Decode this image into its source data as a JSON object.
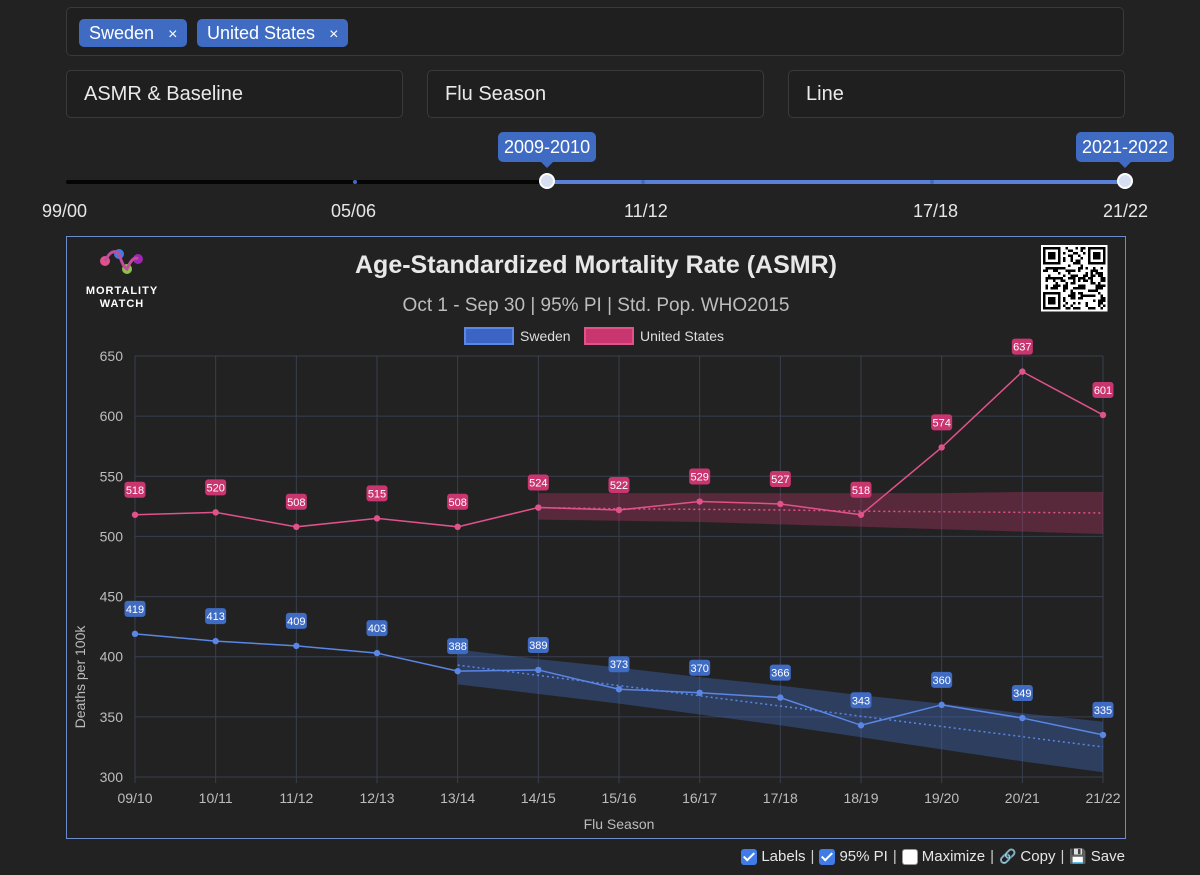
{
  "countries": {
    "chips": [
      {
        "label": "Sweden",
        "remove": "×"
      },
      {
        "label": "United States",
        "remove": "×"
      }
    ]
  },
  "selects": {
    "metric": "ASMR & Baseline",
    "period": "Flu Season",
    "chart_type": "Line"
  },
  "range_slider": {
    "start_label": "2009-2010",
    "end_label": "2021-2022",
    "tick_labels": [
      "99/00",
      "05/06",
      "11/12",
      "17/18",
      "21/22"
    ]
  },
  "logo": {
    "line1": "MORTALITY",
    "line2": "WATCH"
  },
  "qr_icon": "qr-code-icon",
  "colors": {
    "accent": "#3f6bc3",
    "sweden": "#5a86e6",
    "united_states": "#e0528a",
    "sweden_label_bg": "#3f6bc3",
    "us_label_bg": "#c9356f"
  },
  "chart_data": {
    "type": "line",
    "title": "Age-Standardized Mortality Rate (ASMR)",
    "subtitle": "Oct 1 - Sep 30 | 95% PI | Std. Pop. WHO2015",
    "xlabel": "Flu Season",
    "ylabel": "Deaths per 100k",
    "ylim": [
      300,
      650
    ],
    "yticks": [
      300,
      350,
      400,
      450,
      500,
      550,
      600,
      650
    ],
    "categories": [
      "09/10",
      "10/11",
      "11/12",
      "12/13",
      "13/14",
      "14/15",
      "15/16",
      "16/17",
      "17/18",
      "18/19",
      "19/20",
      "20/21",
      "21/22"
    ],
    "legend": [
      "Sweden",
      "United States"
    ],
    "legend_position": "top-center",
    "series": [
      {
        "name": "Sweden",
        "values": [
          419,
          413,
          409,
          403,
          388,
          389,
          373,
          370,
          366,
          343,
          360,
          349,
          335
        ],
        "baseline_start_index": 4,
        "baseline": [
          393,
          384.5,
          376,
          367.5,
          359,
          350.5,
          342,
          333.5,
          325
        ],
        "pi_upper": [
          406,
          398,
          391,
          383,
          376,
          368,
          361,
          353,
          346
        ],
        "pi_lower": [
          377,
          369,
          361,
          352,
          343,
          333,
          323,
          313,
          304
        ]
      },
      {
        "name": "United States",
        "values": [
          518,
          520,
          508,
          515,
          508,
          524,
          522,
          529,
          527,
          518,
          574,
          637,
          601
        ],
        "baseline_start_index": 5,
        "baseline": [
          524,
          523,
          522.5,
          522,
          521,
          520.5,
          520,
          519.5
        ],
        "pi_upper": [
          536,
          536,
          536,
          536,
          536,
          536,
          537,
          537
        ],
        "pi_lower": [
          514,
          513,
          512,
          510,
          508,
          506,
          504,
          502
        ]
      }
    ]
  },
  "footer": {
    "labels": "Labels",
    "pi": "95% PI",
    "maximize": "Maximize",
    "copy": "Copy",
    "save": "Save",
    "sep": "|"
  }
}
